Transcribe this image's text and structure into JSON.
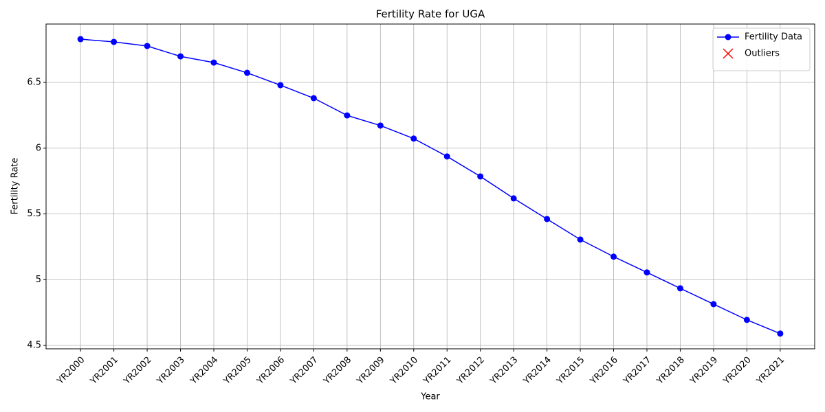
{
  "chart_data": {
    "type": "line",
    "title": "Fertility Rate for UGA",
    "xlabel": "Year",
    "ylabel": "Fertility Rate",
    "categories": [
      "YR2000",
      "YR2001",
      "YR2002",
      "YR2003",
      "YR2004",
      "YR2005",
      "YR2006",
      "YR2007",
      "YR2008",
      "YR2009",
      "YR2010",
      "YR2011",
      "YR2012",
      "YR2013",
      "YR2014",
      "YR2015",
      "YR2016",
      "YR2017",
      "YR2018",
      "YR2019",
      "YR2020",
      "YR2021"
    ],
    "series": [
      {
        "name": "Fertility Data",
        "color": "#0000ff",
        "marker": "o",
        "values": [
          6.829,
          6.808,
          6.777,
          6.698,
          6.651,
          6.573,
          6.479,
          6.38,
          6.249,
          6.172,
          6.073,
          5.937,
          5.785,
          5.618,
          5.461,
          5.305,
          5.175,
          5.055,
          4.934,
          4.814,
          4.694,
          4.59
        ]
      },
      {
        "name": "Outliers",
        "color": "#ff0000",
        "marker": "x",
        "values": [
          null,
          null,
          null,
          null,
          null,
          null,
          null,
          null,
          null,
          null,
          null,
          null,
          null,
          null,
          null,
          null,
          null,
          null,
          null,
          null,
          null,
          null
        ]
      }
    ],
    "ylim": [
      4.474,
      6.944
    ],
    "yticks": [
      4.5,
      5.0,
      5.5,
      6.0,
      6.5
    ],
    "grid": true,
    "legend": "upper right"
  }
}
